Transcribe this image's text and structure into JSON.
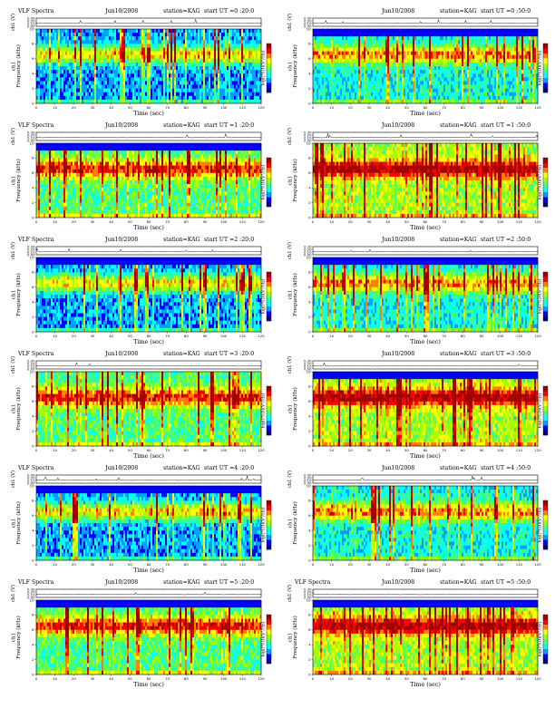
{
  "panels": [
    {
      "id": "p1",
      "title_left": "VLF Spectra",
      "title_date": "Jun10/2008",
      "title_station": "station=KAG",
      "title_start": "start UT =0 :20:0",
      "column": "left",
      "row": 0
    },
    {
      "id": "p2",
      "title_left": "",
      "title_date": "Jun10/2008",
      "title_station": "station=KAG",
      "title_start": "start UT =0 :50:0",
      "column": "right",
      "row": 0
    },
    {
      "id": "p3",
      "title_left": "VLF Spectra",
      "title_date": "Jun10/2008",
      "title_station": "station=KAG",
      "title_start": "start UT =1 :20:0",
      "column": "left",
      "row": 1
    },
    {
      "id": "p4",
      "title_left": "",
      "title_date": "Jun10/2008",
      "title_station": "station=KAG",
      "title_start": "start UT =1 :50:0",
      "column": "right",
      "row": 1
    },
    {
      "id": "p5",
      "title_left": "VLF Spectra",
      "title_date": "Jun10/2008",
      "title_station": "station=KAG",
      "title_start": "start UT =2 :20:0",
      "column": "left",
      "row": 2
    },
    {
      "id": "p6",
      "title_left": "",
      "title_date": "Jun10/2008",
      "title_station": "station=KAG",
      "title_start": "start UT =2 :50:0",
      "column": "right",
      "row": 2
    },
    {
      "id": "p7",
      "title_left": "VLF Spectra",
      "title_date": "Jun10/2008",
      "title_station": "station=KAG",
      "title_start": "start UT =3 :20:0",
      "column": "left",
      "row": 3
    },
    {
      "id": "p8",
      "title_left": "",
      "title_date": "Jun10/2008",
      "title_station": "station=KAG",
      "title_start": "start UT =3 :50:0",
      "column": "right",
      "row": 3
    },
    {
      "id": "p9",
      "title_left": "VLF Spectra",
      "title_date": "Jun10/2008",
      "title_station": "station=KAG",
      "title_start": "start UT =4 :20:0",
      "column": "left",
      "row": 4
    },
    {
      "id": "p10",
      "title_left": "",
      "title_date": "Jun10/2008",
      "title_station": "station=KAG",
      "title_start": "start UT =4 :50:0",
      "column": "right",
      "row": 4
    },
    {
      "id": "p11",
      "title_left": "VLF Spectra",
      "title_date": "Jun10/2008",
      "title_station": "station=KAG",
      "title_start": "start UT =5 :20:0",
      "column": "left",
      "row": 5
    },
    {
      "id": "p12",
      "title_left": "VLF Spectra",
      "title_date": "Jun10/2008",
      "title_station": "station=KAG",
      "title_start": "start UT =5 :50:0",
      "column": "right",
      "row": 5
    }
  ],
  "chart_data": {
    "type": "heatmap",
    "xlabel": "Time (sec)",
    "ylabel_spectrogram": "Frequency (kHz)",
    "ylabel_spectrogram_prefix": "ch1",
    "ylabel_waveform": "ch1 (V)",
    "colorbar_label": "log(PSD)(V²/Hz)",
    "xlim": [
      0,
      120
    ],
    "x_ticks": [
      "0",
      "10",
      "20",
      "30",
      "40",
      "50",
      "60",
      "70",
      "80",
      "90",
      "100",
      "110",
      "120"
    ],
    "ylim_frequency": [
      0,
      10
    ],
    "y_ticks_frequency": [
      "0",
      "2",
      "4",
      "6",
      "8",
      "10"
    ],
    "y_ticks_waveform": [
      "0.30",
      "0.20",
      "0.10",
      "0.00"
    ],
    "colorscale": [
      "#000080",
      "#0000ff",
      "#00a0ff",
      "#00ffff",
      "#40ff80",
      "#a0ff00",
      "#ffff00",
      "#ff8000",
      "#ff0000",
      "#a00000"
    ]
  },
  "colors": {
    "background": "#ffffff",
    "frame": "#000000"
  }
}
